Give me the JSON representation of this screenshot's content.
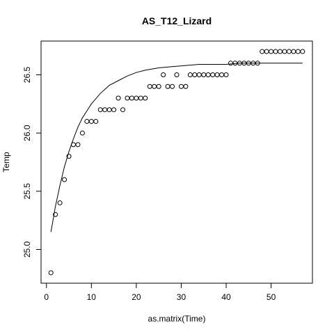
{
  "chart_data": {
    "type": "scatter",
    "title": "AS_T12_Lizard",
    "xlabel": "as.matrix(Time)",
    "ylabel": "Temp",
    "xlim": [
      -1.2,
      59.2
    ],
    "ylim": [
      24.71,
      26.79
    ],
    "xticks": [
      0,
      10,
      20,
      30,
      40,
      50
    ],
    "yticks": [
      25.0,
      25.5,
      26.0,
      26.5
    ],
    "xtick_labels": [
      "0",
      "10",
      "20",
      "30",
      "40",
      "50"
    ],
    "ytick_labels": [
      "25.0",
      "25.5",
      "26.0",
      "26.5"
    ],
    "grid": false,
    "legend": "none",
    "series": [
      {
        "kind": "points",
        "x": [
          1,
          2,
          3,
          4,
          5,
          6,
          7,
          8,
          9,
          10,
          11,
          12,
          13,
          14,
          15,
          16,
          17,
          18,
          19,
          20,
          21,
          22,
          23,
          24,
          25,
          26,
          27,
          28,
          29,
          30,
          31,
          32,
          33,
          34,
          35,
          36,
          37,
          38,
          39,
          40,
          41,
          42,
          43,
          44,
          45,
          46,
          47,
          48,
          49,
          50,
          51,
          52,
          53,
          54,
          55,
          56,
          57
        ],
        "y": [
          24.8,
          25.3,
          25.4,
          25.6,
          25.8,
          25.9,
          25.9,
          26.0,
          26.1,
          26.1,
          26.1,
          26.2,
          26.2,
          26.2,
          26.2,
          26.3,
          26.2,
          26.3,
          26.3,
          26.3,
          26.3,
          26.3,
          26.4,
          26.4,
          26.4,
          26.5,
          26.4,
          26.4,
          26.5,
          26.4,
          26.4,
          26.5,
          26.5,
          26.5,
          26.5,
          26.5,
          26.5,
          26.5,
          26.5,
          26.5,
          26.6,
          26.6,
          26.6,
          26.6,
          26.6,
          26.6,
          26.6,
          26.7,
          26.7,
          26.7,
          26.7,
          26.7,
          26.7,
          26.7,
          26.7,
          26.7,
          26.7
        ]
      },
      {
        "kind": "fitted-curve",
        "x": [
          1,
          2,
          3,
          4,
          5,
          6,
          7,
          8,
          9,
          10,
          12,
          14,
          16,
          18,
          20,
          22,
          25,
          28,
          31,
          34,
          37,
          40,
          43,
          46,
          49,
          52,
          55,
          57
        ],
        "y": [
          25.15,
          25.37,
          25.55,
          25.71,
          25.84,
          25.95,
          26.05,
          26.13,
          26.19,
          26.25,
          26.34,
          26.41,
          26.45,
          26.49,
          26.52,
          26.54,
          26.56,
          26.57,
          26.58,
          26.59,
          26.59,
          26.59,
          26.6,
          26.6,
          26.6,
          26.6,
          26.6,
          26.6
        ]
      }
    ]
  }
}
